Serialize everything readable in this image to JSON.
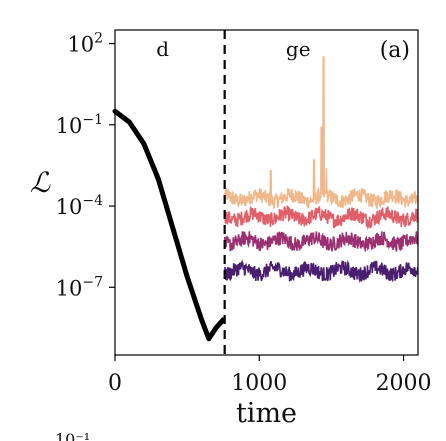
{
  "chart_data": {
    "type": "line",
    "title": "",
    "panel_label": "(a)",
    "xlabel": "time",
    "ylabel": "ℒ",
    "xlim": [
      0,
      2100
    ],
    "ylim_exponent": [
      -9.5,
      2.5
    ],
    "y_scale": "log",
    "x_ticks": [
      {
        "value": 0,
        "label": "0"
      },
      {
        "value": 1000,
        "label": "1000"
      },
      {
        "value": 2000,
        "label": "2000"
      }
    ],
    "y_ticks": [
      {
        "exp": 2,
        "base": "10",
        "sup": "2"
      },
      {
        "exp": -1,
        "base": "10",
        "sup": "−1"
      },
      {
        "exp": -4,
        "base": "10",
        "sup": "−4"
      },
      {
        "exp": -7,
        "base": "10",
        "sup": "−7"
      }
    ],
    "vline": {
      "x": 760,
      "style": "dashed",
      "color": "#000000"
    },
    "region_labels": [
      {
        "text": "d",
        "x": 330
      },
      {
        "text": "ge",
        "x": 1270
      }
    ],
    "decay_curve": {
      "color": "#000000",
      "points": [
        [
          0,
          -0.5
        ],
        [
          100,
          -0.9
        ],
        [
          200,
          -1.7
        ],
        [
          300,
          -3.0
        ],
        [
          400,
          -4.8
        ],
        [
          500,
          -6.6
        ],
        [
          600,
          -8.2
        ],
        [
          650,
          -8.9
        ],
        [
          700,
          -8.5
        ],
        [
          750,
          -8.2
        ]
      ]
    },
    "series": [
      {
        "color": "#f0b88a",
        "start_x": 760,
        "end_x": 2100,
        "log10_level": -3.7,
        "spikes": [
          [
            1080,
            -2.7
          ],
          [
            1380,
            -2.3
          ],
          [
            1430,
            -1.1
          ],
          [
            1445,
            1.5
          ],
          [
            1465,
            -2.6
          ]
        ]
      },
      {
        "color": "#e0606a",
        "start_x": 760,
        "end_x": 2100,
        "log10_level": -4.4,
        "spikes": []
      },
      {
        "color": "#9a3070",
        "start_x": 760,
        "end_x": 2100,
        "log10_level": -5.3,
        "spikes": []
      },
      {
        "color": "#4a1e6e",
        "start_x": 760,
        "end_x": 2100,
        "log10_level": -6.4,
        "spikes": []
      }
    ]
  },
  "bottom_cut_text": "10⁻¹"
}
